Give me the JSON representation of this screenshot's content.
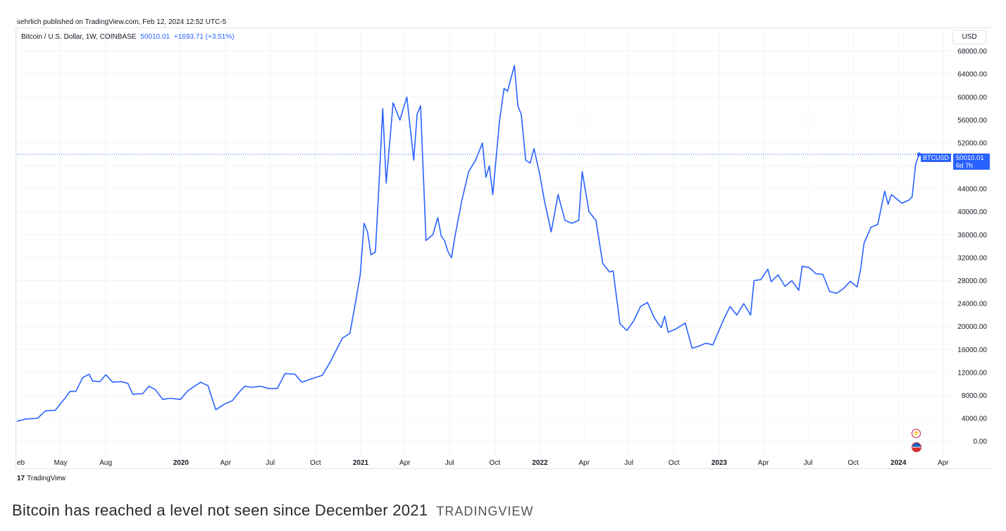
{
  "header": {
    "published": "sehrlich published on TradingView.com, Feb 12, 2024 12:52 UTC-5"
  },
  "legend": {
    "symbol": "Bitcoin / U.S. Dollar, 1W, COINBASE",
    "last": "50010.01",
    "change": "+1693.71 (+3.51%)"
  },
  "currency_label": "USD",
  "last_price_tag": {
    "symbol": "BTCUSD",
    "price": "50010.01",
    "countdown": "6d 7h"
  },
  "footer": {
    "logo_text": "TradingView"
  },
  "caption": {
    "text": "Bitcoin has reached a level not seen since December 2021",
    "source": "TRADINGVIEW"
  },
  "colors": {
    "line": "#2962ff",
    "grid": "#f0f3fa",
    "axis_text": "#131722"
  },
  "icons": [
    "flash-icon",
    "us-flag-icon",
    "tradingview-logo-icon"
  ],
  "chart_data": {
    "type": "line",
    "interval": "1W",
    "x_range": [
      "2019-02-01",
      "2024-04-10"
    ],
    "ylim": [
      -2500,
      72000
    ],
    "y_ticks": [
      0,
      4000,
      8000,
      12000,
      16000,
      20000,
      24000,
      28000,
      32000,
      36000,
      40000,
      44000,
      48000,
      52000,
      56000,
      60000,
      64000,
      68000
    ],
    "y_tick_labels": [
      "0.00",
      "4000.00",
      "8000.00",
      "12000.00",
      "16000.00",
      "20000.00",
      "24000.00",
      "28000.00",
      "32000.00",
      "36000.00",
      "40000.00",
      "44000.00",
      "48000.00",
      "52000.00",
      "56000.00",
      "60000.00",
      "64000.00",
      "68000.00"
    ],
    "x_ticks": [
      {
        "date": "2019-02-01",
        "label": "eb"
      },
      {
        "date": "2019-05-01",
        "label": "May"
      },
      {
        "date": "2019-08-01",
        "label": "Aug"
      },
      {
        "date": "2020-01-01",
        "label": "2020"
      },
      {
        "date": "2020-04-01",
        "label": "Apr"
      },
      {
        "date": "2020-07-01",
        "label": "Jul"
      },
      {
        "date": "2020-10-01",
        "label": "Oct"
      },
      {
        "date": "2021-01-01",
        "label": "2021"
      },
      {
        "date": "2021-04-01",
        "label": "Apr"
      },
      {
        "date": "2021-07-01",
        "label": "Jul"
      },
      {
        "date": "2021-10-01",
        "label": "Oct"
      },
      {
        "date": "2022-01-01",
        "label": "2022"
      },
      {
        "date": "2022-04-01",
        "label": "Apr"
      },
      {
        "date": "2022-07-01",
        "label": "Jul"
      },
      {
        "date": "2022-10-01",
        "label": "Oct"
      },
      {
        "date": "2023-01-01",
        "label": "2023"
      },
      {
        "date": "2023-04-01",
        "label": "Apr"
      },
      {
        "date": "2023-07-01",
        "label": "Jul"
      },
      {
        "date": "2023-10-01",
        "label": "Oct"
      },
      {
        "date": "2024-01-01",
        "label": "2024"
      },
      {
        "date": "2024-04-01",
        "label": "Apr"
      }
    ],
    "last_value": 50010.01,
    "series": [
      {
        "values": [
          [
            "2019-02-01",
            3500
          ],
          [
            "2019-02-20",
            3900
          ],
          [
            "2019-03-15",
            4000
          ],
          [
            "2019-03-31",
            5300
          ],
          [
            "2019-04-20",
            5400
          ],
          [
            "2019-05-10",
            7500
          ],
          [
            "2019-05-20",
            8700
          ],
          [
            "2019-06-01",
            8700
          ],
          [
            "2019-06-15",
            11100
          ],
          [
            "2019-06-28",
            11700
          ],
          [
            "2019-07-05",
            10500
          ],
          [
            "2019-07-20",
            10400
          ],
          [
            "2019-08-01",
            11600
          ],
          [
            "2019-08-15",
            10300
          ],
          [
            "2019-09-01",
            10400
          ],
          [
            "2019-09-15",
            10100
          ],
          [
            "2019-09-25",
            8200
          ],
          [
            "2019-10-15",
            8300
          ],
          [
            "2019-10-28",
            9600
          ],
          [
            "2019-11-10",
            9000
          ],
          [
            "2019-11-25",
            7300
          ],
          [
            "2019-12-10",
            7500
          ],
          [
            "2019-12-31",
            7300
          ],
          [
            "2020-01-15",
            8800
          ],
          [
            "2020-02-10",
            10300
          ],
          [
            "2020-02-25",
            9700
          ],
          [
            "2020-03-12",
            5500
          ],
          [
            "2020-03-30",
            6500
          ],
          [
            "2020-04-15",
            7100
          ],
          [
            "2020-05-01",
            8800
          ],
          [
            "2020-05-10",
            9600
          ],
          [
            "2020-05-25",
            9400
          ],
          [
            "2020-06-10",
            9600
          ],
          [
            "2020-06-28",
            9200
          ],
          [
            "2020-07-15",
            9200
          ],
          [
            "2020-07-31",
            11800
          ],
          [
            "2020-08-20",
            11700
          ],
          [
            "2020-09-03",
            10300
          ],
          [
            "2020-09-20",
            10800
          ],
          [
            "2020-10-15",
            11500
          ],
          [
            "2020-10-31",
            13800
          ],
          [
            "2020-11-10",
            15500
          ],
          [
            "2020-11-25",
            18000
          ],
          [
            "2020-12-10",
            18800
          ],
          [
            "2020-12-20",
            23500
          ],
          [
            "2020-12-31",
            29000
          ],
          [
            "2021-01-08",
            38000
          ],
          [
            "2021-01-15",
            36500
          ],
          [
            "2021-01-22",
            32500
          ],
          [
            "2021-01-31",
            33000
          ],
          [
            "2021-02-08",
            46000
          ],
          [
            "2021-02-15",
            58000
          ],
          [
            "2021-02-22",
            45000
          ],
          [
            "2021-03-08",
            59000
          ],
          [
            "2021-03-22",
            56000
          ],
          [
            "2021-04-05",
            60000
          ],
          [
            "2021-04-19",
            49000
          ],
          [
            "2021-04-26",
            57000
          ],
          [
            "2021-05-03",
            58500
          ],
          [
            "2021-05-14",
            35000
          ],
          [
            "2021-05-28",
            36000
          ],
          [
            "2021-06-07",
            39000
          ],
          [
            "2021-06-14",
            35800
          ],
          [
            "2021-06-21",
            34900
          ],
          [
            "2021-06-28",
            33000
          ],
          [
            "2021-07-05",
            32000
          ],
          [
            "2021-07-12",
            35700
          ],
          [
            "2021-07-26",
            42000
          ],
          [
            "2021-08-09",
            47000
          ],
          [
            "2021-08-23",
            49000
          ],
          [
            "2021-09-06",
            52000
          ],
          [
            "2021-09-13",
            46000
          ],
          [
            "2021-09-20",
            48000
          ],
          [
            "2021-09-27",
            43000
          ],
          [
            "2021-10-11",
            56000
          ],
          [
            "2021-10-20",
            61500
          ],
          [
            "2021-10-27",
            61000
          ],
          [
            "2021-11-10",
            65500
          ],
          [
            "2021-11-17",
            58500
          ],
          [
            "2021-11-24",
            57000
          ],
          [
            "2021-12-03",
            49000
          ],
          [
            "2021-12-12",
            48500
          ],
          [
            "2021-12-20",
            51000
          ],
          [
            "2021-12-31",
            46800
          ],
          [
            "2022-01-10",
            42000
          ],
          [
            "2022-01-24",
            36500
          ],
          [
            "2022-02-07",
            43000
          ],
          [
            "2022-02-21",
            38500
          ],
          [
            "2022-03-07",
            38000
          ],
          [
            "2022-03-21",
            38500
          ],
          [
            "2022-03-28",
            47000
          ],
          [
            "2022-04-11",
            40000
          ],
          [
            "2022-04-25",
            38500
          ],
          [
            "2022-05-09",
            31000
          ],
          [
            "2022-05-23",
            29500
          ],
          [
            "2022-05-30",
            29700
          ],
          [
            "2022-06-13",
            20500
          ],
          [
            "2022-06-27",
            19300
          ],
          [
            "2022-07-11",
            21000
          ],
          [
            "2022-07-25",
            23500
          ],
          [
            "2022-08-08",
            24200
          ],
          [
            "2022-08-22",
            21500
          ],
          [
            "2022-09-05",
            19800
          ],
          [
            "2022-09-12",
            21800
          ],
          [
            "2022-09-19",
            19000
          ],
          [
            "2022-10-03",
            19500
          ],
          [
            "2022-10-24",
            20600
          ],
          [
            "2022-11-07",
            16200
          ],
          [
            "2022-11-21",
            16600
          ],
          [
            "2022-12-05",
            17100
          ],
          [
            "2022-12-19",
            16800
          ],
          [
            "2023-01-09",
            21000
          ],
          [
            "2023-01-23",
            23500
          ],
          [
            "2023-02-06",
            22000
          ],
          [
            "2023-02-20",
            24000
          ],
          [
            "2023-03-06",
            22000
          ],
          [
            "2023-03-13",
            28000
          ],
          [
            "2023-03-27",
            28200
          ],
          [
            "2023-04-10",
            30000
          ],
          [
            "2023-04-17",
            27800
          ],
          [
            "2023-05-01",
            29000
          ],
          [
            "2023-05-15",
            27000
          ],
          [
            "2023-05-29",
            28000
          ],
          [
            "2023-06-12",
            26300
          ],
          [
            "2023-06-19",
            30500
          ],
          [
            "2023-07-03",
            30300
          ],
          [
            "2023-07-17",
            29200
          ],
          [
            "2023-07-31",
            29100
          ],
          [
            "2023-08-14",
            26100
          ],
          [
            "2023-08-28",
            25800
          ],
          [
            "2023-09-11",
            26600
          ],
          [
            "2023-09-25",
            27900
          ],
          [
            "2023-10-09",
            26900
          ],
          [
            "2023-10-16",
            30000
          ],
          [
            "2023-10-23",
            34500
          ],
          [
            "2023-11-06",
            37300
          ],
          [
            "2023-11-20",
            37800
          ],
          [
            "2023-12-04",
            43600
          ],
          [
            "2023-12-11",
            41300
          ],
          [
            "2023-12-18",
            43000
          ],
          [
            "2023-12-25",
            42500
          ],
          [
            "2024-01-08",
            41500
          ],
          [
            "2024-01-22",
            42000
          ],
          [
            "2024-01-29",
            42600
          ],
          [
            "2024-02-05",
            48300
          ],
          [
            "2024-02-12",
            50010
          ]
        ]
      }
    ]
  }
}
